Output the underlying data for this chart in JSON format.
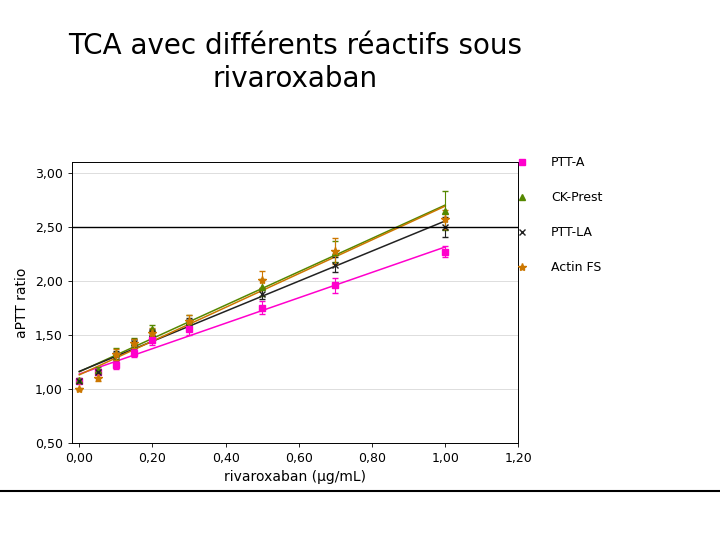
{
  "title": "TCA avec différents réactifs sous\nrivaroxaban",
  "xlabel": "rivaroxaban (µg/mL)",
  "ylabel": "aPTT ratio",
  "xlim": [
    -0.02,
    1.2
  ],
  "ylim": [
    0.5,
    3.1
  ],
  "xticks": [
    0.0,
    0.2,
    0.4,
    0.6,
    0.8,
    1.0,
    1.2
  ],
  "yticks": [
    0.5,
    1.0,
    1.5,
    2.0,
    2.5,
    3.0
  ],
  "hline_y": 2.5,
  "series": {
    "PTT-A": {
      "color": "#FF00CC",
      "marker": "s",
      "markersize": 4,
      "x": [
        0.0,
        0.05,
        0.1,
        0.15,
        0.2,
        0.3,
        0.5,
        0.7,
        1.0
      ],
      "y": [
        1.07,
        1.16,
        1.22,
        1.33,
        1.45,
        1.55,
        1.75,
        1.96,
        2.27
      ],
      "yerr": [
        0.02,
        0.02,
        0.04,
        0.04,
        0.04,
        0.05,
        0.06,
        0.07,
        0.05
      ]
    },
    "CK-Prest": {
      "color": "#558800",
      "marker": "^",
      "markersize": 5,
      "x": [
        0.0,
        0.05,
        0.1,
        0.15,
        0.2,
        0.3,
        0.5,
        0.7,
        1.0
      ],
      "y": [
        1.08,
        1.17,
        1.33,
        1.43,
        1.55,
        1.63,
        1.94,
        2.27,
        2.65
      ],
      "yerr": [
        0.02,
        0.03,
        0.05,
        0.04,
        0.04,
        0.05,
        0.08,
        0.1,
        0.18
      ]
    },
    "PTT-LA": {
      "color": "#222222",
      "marker": "x",
      "markersize": 5,
      "x": [
        0.0,
        0.05,
        0.1,
        0.15,
        0.2,
        0.3,
        0.5,
        0.7,
        1.0
      ],
      "y": [
        1.07,
        1.16,
        1.31,
        1.42,
        1.52,
        1.62,
        1.88,
        2.15,
        2.5
      ],
      "yerr": [
        0.02,
        0.02,
        0.04,
        0.04,
        0.03,
        0.04,
        0.05,
        0.07,
        0.09
      ]
    },
    "Actin FS": {
      "color": "#cc7700",
      "marker": "*",
      "markersize": 6,
      "x": [
        0.0,
        0.05,
        0.1,
        0.15,
        0.2,
        0.3,
        0.5,
        0.7,
        1.0
      ],
      "y": [
        1.0,
        1.1,
        1.32,
        1.42,
        1.52,
        1.63,
        2.01,
        2.28,
        2.57
      ],
      "yerr": [
        0.01,
        0.03,
        0.05,
        0.04,
        0.04,
        0.05,
        0.08,
        0.12,
        0.09
      ]
    }
  },
  "legend_order": [
    "PTT-A",
    "CK-Prest",
    "PTT-LA",
    "Actin FS"
  ],
  "background_color": "#ffffff",
  "title_fontsize": 20,
  "axis_label_fontsize": 10,
  "tick_fontsize": 9,
  "legend_fontsize": 9
}
